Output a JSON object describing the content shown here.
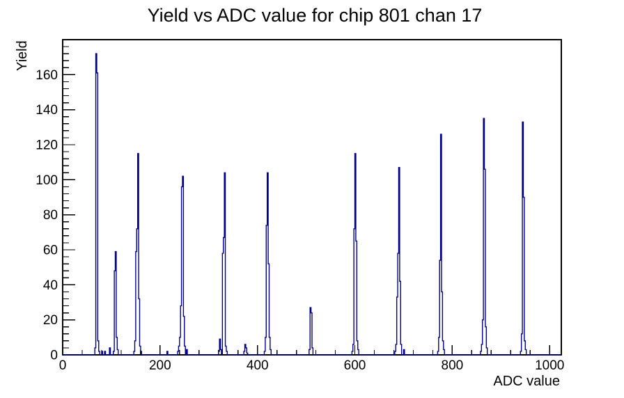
{
  "chart_data": {
    "type": "bar",
    "subtype": "root-histogram-step-outline",
    "title": "Yield vs ADC value for chip 801 chan 17",
    "xlabel": "ADC value",
    "ylabel": "Yield",
    "xlim": [
      0,
      1024
    ],
    "ylim": [
      0,
      180
    ],
    "x_major_ticks": [
      0,
      200,
      400,
      600,
      800,
      1000
    ],
    "x_minor_step": 40,
    "y_major_ticks": [
      0,
      20,
      40,
      60,
      80,
      100,
      120,
      140,
      160
    ],
    "y_minor_step": 4,
    "grid": false,
    "legend": "none",
    "bin_width": 2,
    "line_color": "#00008b",
    "frame_color": "#000000",
    "background_color": "#ffffff",
    "bins": [
      [
        66,
        4
      ],
      [
        68,
        172
      ],
      [
        70,
        161
      ],
      [
        72,
        8
      ],
      [
        74,
        2
      ],
      [
        80,
        2
      ],
      [
        86,
        2
      ],
      [
        96,
        4
      ],
      [
        104,
        2
      ],
      [
        106,
        48
      ],
      [
        108,
        59
      ],
      [
        110,
        10
      ],
      [
        112,
        3
      ],
      [
        146,
        2
      ],
      [
        148,
        8
      ],
      [
        150,
        59
      ],
      [
        152,
        72
      ],
      [
        154,
        115
      ],
      [
        156,
        32
      ],
      [
        158,
        5
      ],
      [
        160,
        2
      ],
      [
        214,
        2
      ],
      [
        236,
        2
      ],
      [
        238,
        5
      ],
      [
        240,
        10
      ],
      [
        242,
        28
      ],
      [
        244,
        96
      ],
      [
        246,
        102
      ],
      [
        248,
        22
      ],
      [
        250,
        5
      ],
      [
        254,
        3
      ],
      [
        320,
        2
      ],
      [
        322,
        9
      ],
      [
        324,
        3
      ],
      [
        328,
        58
      ],
      [
        330,
        67
      ],
      [
        332,
        104
      ],
      [
        334,
        5
      ],
      [
        336,
        2
      ],
      [
        372,
        2
      ],
      [
        374,
        6
      ],
      [
        376,
        4
      ],
      [
        378,
        1
      ],
      [
        414,
        2
      ],
      [
        416,
        10
      ],
      [
        418,
        74
      ],
      [
        420,
        104
      ],
      [
        422,
        52
      ],
      [
        424,
        10
      ],
      [
        426,
        3
      ],
      [
        506,
        3
      ],
      [
        508,
        27
      ],
      [
        510,
        24
      ],
      [
        512,
        4
      ],
      [
        594,
        2
      ],
      [
        596,
        6
      ],
      [
        598,
        72
      ],
      [
        600,
        115
      ],
      [
        602,
        65
      ],
      [
        604,
        8
      ],
      [
        606,
        3
      ],
      [
        682,
        2
      ],
      [
        684,
        6
      ],
      [
        686,
        33
      ],
      [
        688,
        58
      ],
      [
        690,
        107
      ],
      [
        692,
        42
      ],
      [
        694,
        6
      ],
      [
        700,
        3
      ],
      [
        770,
        2
      ],
      [
        772,
        10
      ],
      [
        774,
        54
      ],
      [
        776,
        126
      ],
      [
        778,
        36
      ],
      [
        780,
        8
      ],
      [
        782,
        3
      ],
      [
        858,
        2
      ],
      [
        860,
        6
      ],
      [
        862,
        20
      ],
      [
        864,
        135
      ],
      [
        866,
        106
      ],
      [
        868,
        16
      ],
      [
        870,
        4
      ],
      [
        940,
        2
      ],
      [
        942,
        12
      ],
      [
        944,
        133
      ],
      [
        946,
        90
      ],
      [
        948,
        8
      ],
      [
        950,
        3
      ]
    ]
  }
}
